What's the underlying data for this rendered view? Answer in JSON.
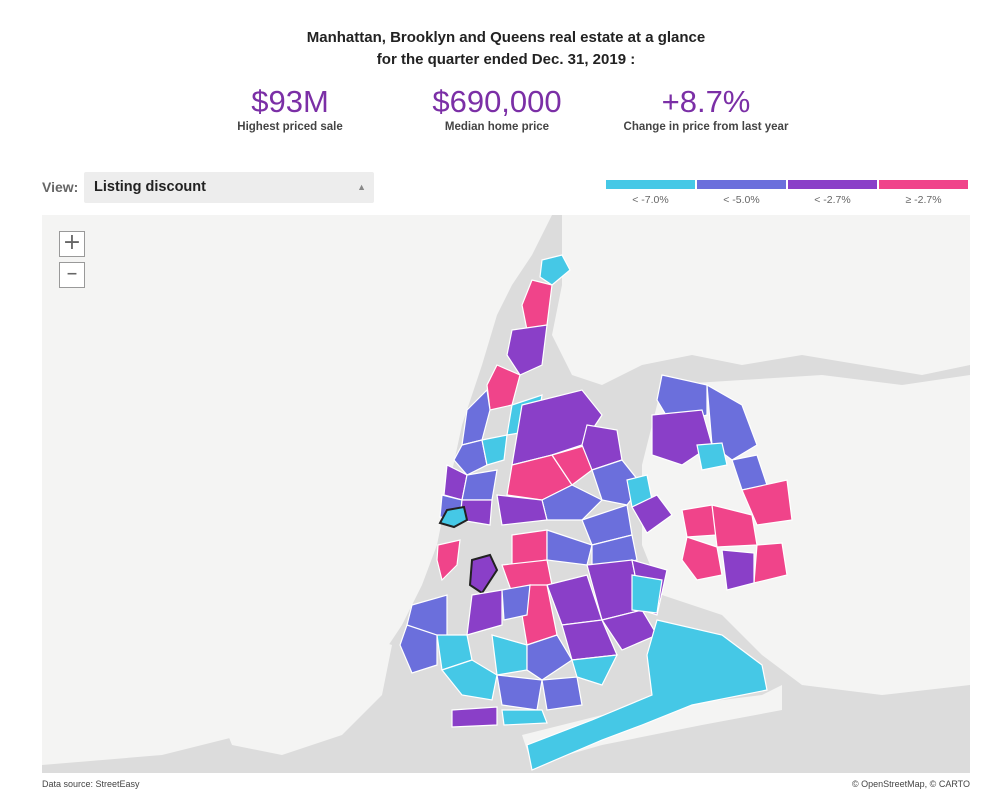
{
  "headline": {
    "line1": "Manhattan, Brooklyn and Queens real estate at a glance",
    "line2": "for the quarter ended Dec. 31, 2019 :"
  },
  "stats": [
    {
      "value": "$93M",
      "label": "Highest priced sale"
    },
    {
      "value": "$690,000",
      "label": "Median home price"
    },
    {
      "value": "+8.7%",
      "label": "Change in price from last year"
    }
  ],
  "controls": {
    "view_label": "View:",
    "view_selected": "Listing discount",
    "zoom_in": "+",
    "zoom_out": "–"
  },
  "legend": [
    {
      "label": "< -7.0%",
      "color": "#45c8e6"
    },
    {
      "label": "< -5.0%",
      "color": "#6b6fdc"
    },
    {
      "label": "< -2.7%",
      "color": "#8a3fc8"
    },
    {
      "label": "≥ -2.7%",
      "color": "#f0448a"
    }
  ],
  "footer": {
    "source": "Data source: StreetEasy",
    "attribution": "© OpenStreetMap, © CARTO"
  }
}
